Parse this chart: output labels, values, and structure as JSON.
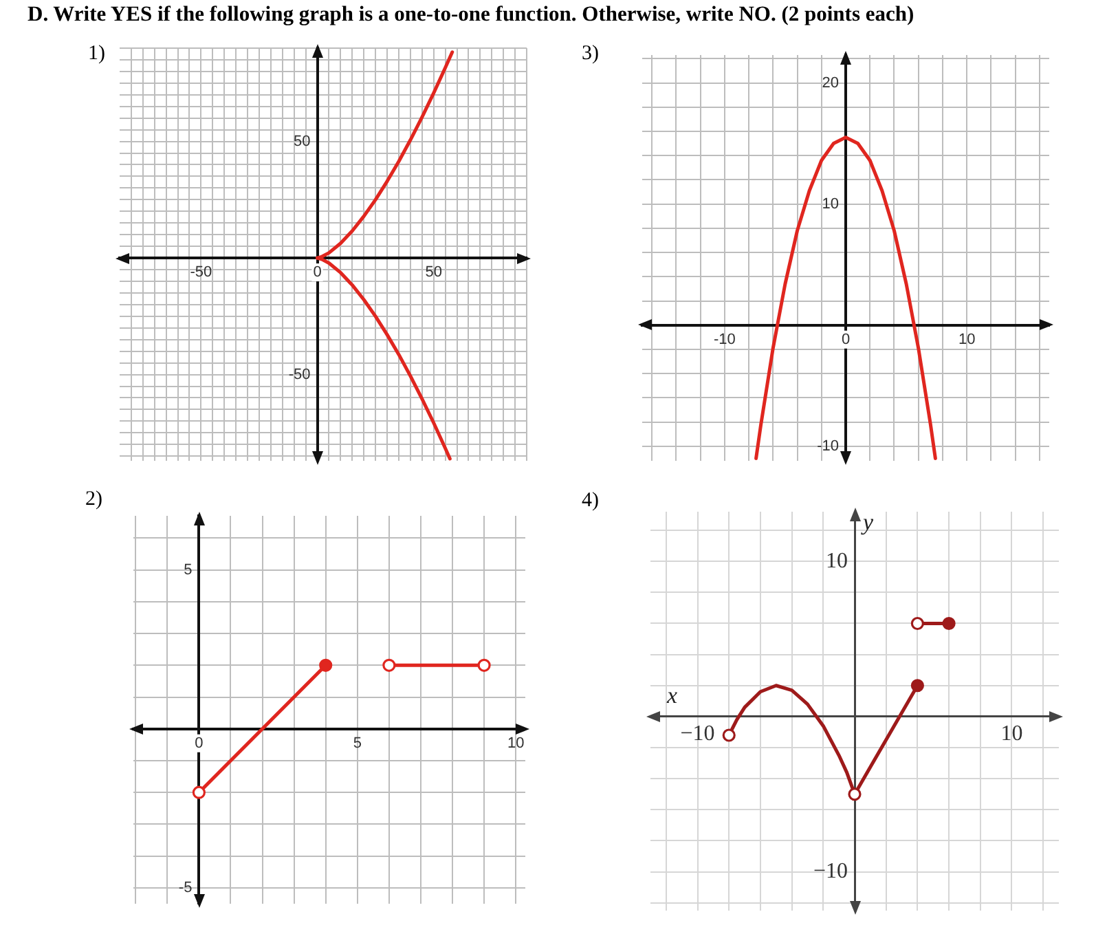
{
  "chart_data": [
    {
      "type": "other",
      "title": "D. Write YES if the following graph is a one-to-one function. Otherwise, write NO. (2 points each)"
    },
    {
      "type": "line",
      "title": "1)",
      "xlim": [
        -85,
        90
      ],
      "ylim": [
        -87,
        90
      ],
      "grid": true,
      "legend": false,
      "xticks": [
        {
          "value": -80,
          "label": null
        },
        {
          "value": -75,
          "label": null
        },
        {
          "value": -70,
          "label": null
        },
        {
          "value": -65,
          "label": null
        },
        {
          "value": -60,
          "label": null
        },
        {
          "value": -55,
          "label": null
        },
        -50,
        {
          "value": -45,
          "label": null
        },
        {
          "value": -40,
          "label": null
        },
        {
          "value": -35,
          "label": null
        },
        {
          "value": -30,
          "label": null
        },
        {
          "value": -25,
          "label": null
        },
        {
          "value": -20,
          "label": null
        },
        {
          "value": -15,
          "label": null
        },
        {
          "value": -10,
          "label": null
        },
        {
          "value": -5,
          "label": null
        },
        0,
        {
          "value": 5,
          "label": null
        },
        {
          "value": 10,
          "label": null
        },
        {
          "value": 15,
          "label": null
        },
        {
          "value": 20,
          "label": null
        },
        {
          "value": 25,
          "label": null
        },
        {
          "value": 30,
          "label": null
        },
        {
          "value": 35,
          "label": null
        },
        {
          "value": 40,
          "label": null
        },
        {
          "value": 45,
          "label": null
        },
        50,
        {
          "value": 55,
          "label": null
        },
        {
          "value": 60,
          "label": null
        },
        {
          "value": 65,
          "label": null
        },
        {
          "value": 70,
          "label": null
        },
        {
          "value": 75,
          "label": null
        },
        {
          "value": 80,
          "label": null
        },
        {
          "value": 85,
          "label": null
        },
        {
          "value": 90,
          "label": null
        }
      ],
      "yticks": [
        {
          "value": -85,
          "label": null
        },
        {
          "value": -80,
          "label": null
        },
        {
          "value": -75,
          "label": null
        },
        {
          "value": -70,
          "label": null
        },
        {
          "value": -65,
          "label": null
        },
        {
          "value": -60,
          "label": null
        },
        {
          "value": -55,
          "label": null
        },
        -50,
        {
          "value": -45,
          "label": null
        },
        {
          "value": -40,
          "label": null
        },
        {
          "value": -35,
          "label": null
        },
        {
          "value": -30,
          "label": null
        },
        {
          "value": -25,
          "label": null
        },
        {
          "value": -20,
          "label": null
        },
        {
          "value": -15,
          "label": null
        },
        {
          "value": -10,
          "label": null
        },
        {
          "value": -5,
          "label": null
        },
        {
          "value": 0,
          "label": null
        },
        {
          "value": 5,
          "label": null
        },
        {
          "value": 10,
          "label": null
        },
        {
          "value": 15,
          "label": null
        },
        {
          "value": 20,
          "label": null
        },
        {
          "value": 25,
          "label": null
        },
        {
          "value": 30,
          "label": null
        },
        {
          "value": 35,
          "label": null
        },
        {
          "value": 40,
          "label": null
        },
        {
          "value": 45,
          "label": null
        },
        50,
        {
          "value": 55,
          "label": null
        },
        {
          "value": 60,
          "label": null
        },
        {
          "value": 65,
          "label": null
        },
        {
          "value": 70,
          "label": null
        },
        {
          "value": 75,
          "label": null
        },
        {
          "value": 80,
          "label": null
        },
        {
          "value": 85,
          "label": null
        },
        {
          "value": 90,
          "label": null
        }
      ],
      "series": [
        {
          "type": "line",
          "color": "#e0261f",
          "marker": "none",
          "x": [
            0,
            2,
            5,
            10,
            15,
            20,
            25,
            30,
            35,
            40,
            45,
            50,
            55,
            58
          ],
          "values": [
            0,
            0.6,
            2.2,
            6.3,
            11.6,
            17.9,
            25,
            32.9,
            41.4,
            50.6,
            60.4,
            70.7,
            81.6,
            88.3
          ]
        },
        {
          "type": "line",
          "color": "#e0261f",
          "marker": "none",
          "x": [
            0,
            2,
            5,
            10,
            15,
            20,
            25,
            30,
            35,
            40,
            45,
            50,
            55,
            57
          ],
          "values": [
            0,
            -0.6,
            -2.2,
            -6.3,
            -11.6,
            -17.9,
            -25,
            -32.9,
            -41.4,
            -50.6,
            -60.4,
            -70.7,
            -81.6,
            -86.1
          ]
        }
      ]
    },
    {
      "type": "line",
      "title": "3)",
      "xlim": [
        -16.8,
        16.8
      ],
      "ylim": [
        -11.2,
        22.3
      ],
      "grid": true,
      "legend": false,
      "xticks": [
        {
          "value": -16,
          "label": null
        },
        {
          "value": -14,
          "label": null
        },
        {
          "value": -12,
          "label": null
        },
        -10,
        {
          "value": -8,
          "label": null
        },
        {
          "value": -6,
          "label": null
        },
        {
          "value": -4,
          "label": null
        },
        {
          "value": -2,
          "label": null
        },
        0,
        {
          "value": 2,
          "label": null
        },
        {
          "value": 4,
          "label": null
        },
        {
          "value": 6,
          "label": null
        },
        {
          "value": 8,
          "label": null
        },
        10,
        {
          "value": 12,
          "label": null
        },
        {
          "value": 14,
          "label": null
        },
        {
          "value": 16,
          "label": null
        }
      ],
      "yticks": [
        -10,
        {
          "value": -8,
          "label": null
        },
        {
          "value": -6,
          "label": null
        },
        {
          "value": -4,
          "label": null
        },
        {
          "value": -2,
          "label": null
        },
        {
          "value": 0,
          "label": null
        },
        {
          "value": 2,
          "label": null
        },
        {
          "value": 4,
          "label": null
        },
        {
          "value": 6,
          "label": null
        },
        {
          "value": 8,
          "label": null
        },
        10,
        {
          "value": 12,
          "label": null
        },
        {
          "value": 14,
          "label": null
        },
        {
          "value": 16,
          "label": null
        },
        {
          "value": 18,
          "label": null
        },
        20,
        {
          "value": 22,
          "label": null
        }
      ],
      "series": [
        {
          "type": "line",
          "color": "#e0261f",
          "marker": "none",
          "x": [
            -7.4,
            -7,
            -6,
            -5,
            -4,
            -3,
            -2,
            -1,
            0,
            1,
            2,
            3,
            4,
            5,
            6,
            7,
            7.4
          ],
          "values": [
            -11,
            -8.2,
            -1.9,
            3.4,
            7.8,
            11.1,
            13.6,
            15,
            15.5,
            15,
            13.6,
            11.1,
            7.8,
            3.4,
            -1.9,
            -8.2,
            -11
          ]
        }
      ]
    },
    {
      "type": "line",
      "title": "2)",
      "xlim": [
        -2.07,
        10.3
      ],
      "ylim": [
        -5.5,
        6.7
      ],
      "grid": true,
      "legend": false,
      "xticks": [
        {
          "value": -2,
          "label": null
        },
        {
          "value": -1,
          "label": null
        },
        0,
        {
          "value": 1,
          "label": null
        },
        {
          "value": 2,
          "label": null
        },
        {
          "value": 3,
          "label": null
        },
        {
          "value": 4,
          "label": null
        },
        5,
        {
          "value": 6,
          "label": null
        },
        {
          "value": 7,
          "label": null
        },
        {
          "value": 8,
          "label": null
        },
        {
          "value": 9,
          "label": null
        },
        10
      ],
      "yticks": [
        -5,
        {
          "value": -4,
          "label": null
        },
        {
          "value": -3,
          "label": null
        },
        {
          "value": -2,
          "label": null
        },
        {
          "value": -1,
          "label": null
        },
        {
          "value": 0,
          "label": null
        },
        {
          "value": 1,
          "label": null
        },
        {
          "value": 2,
          "label": null
        },
        {
          "value": 3,
          "label": null
        },
        {
          "value": 4,
          "label": null
        },
        5,
        {
          "value": 6,
          "label": null
        }
      ],
      "series": [
        {
          "type": "line",
          "color": "#e0261f",
          "marker": "none",
          "x": [
            0,
            4
          ],
          "values": [
            -2,
            2
          ]
        },
        {
          "type": "line",
          "color": "#e0261f",
          "marker": "none",
          "x": [
            6,
            9
          ],
          "values": [
            2,
            2
          ]
        },
        {
          "type": "scatter",
          "color": "#e0261f",
          "marker": "circle",
          "x": [
            0,
            6,
            9
          ],
          "values": [
            -2,
            2,
            2
          ],
          "colors": [
            "#ffffff",
            "#ffffff",
            "#ffffff"
          ]
        },
        {
          "type": "scatter",
          "color": "#e0261f",
          "marker": "circle",
          "x": [
            4
          ],
          "values": [
            2
          ]
        }
      ]
    },
    {
      "type": "line",
      "title": "4)",
      "xlabel": "x",
      "ylabel": "y",
      "xlim": [
        -13,
        13
      ],
      "ylim": [
        -12.5,
        13.2
      ],
      "grid": true,
      "legend": false,
      "xticks": [
        {
          "value": -12,
          "label": null
        },
        {
          "value": -10,
          "label": "−10"
        },
        {
          "value": -8,
          "label": null
        },
        {
          "value": -6,
          "label": null
        },
        {
          "value": -4,
          "label": null
        },
        {
          "value": -2,
          "label": null
        },
        {
          "value": 0,
          "label": null
        },
        {
          "value": 2,
          "label": null
        },
        {
          "value": 4,
          "label": null
        },
        {
          "value": 6,
          "label": null
        },
        {
          "value": 8,
          "label": null
        },
        10,
        {
          "value": 12,
          "label": null
        }
      ],
      "yticks": [
        {
          "value": -12,
          "label": null
        },
        {
          "value": -10,
          "label": "−10"
        },
        {
          "value": -8,
          "label": null
        },
        {
          "value": -6,
          "label": null
        },
        {
          "value": -4,
          "label": null
        },
        {
          "value": -2,
          "label": null
        },
        {
          "value": 0,
          "label": null
        },
        {
          "value": 2,
          "label": null
        },
        {
          "value": 4,
          "label": null
        },
        {
          "value": 6,
          "label": null
        },
        {
          "value": 8,
          "label": null
        },
        10,
        {
          "value": 12,
          "label": null
        }
      ],
      "series": [
        {
          "type": "line",
          "color": "#9e1a1a",
          "marker": "none",
          "x": [
            -8,
            -7.5,
            -7,
            -6,
            -5,
            -4,
            -3,
            -2,
            -1,
            -0.5,
            0
          ],
          "values": [
            -1.2,
            -0.2,
            0.6,
            1.6,
            2,
            1.7,
            0.8,
            -0.6,
            -2.5,
            -3.6,
            -5
          ]
        },
        {
          "type": "line",
          "color": "#9e1a1a",
          "marker": "none",
          "x": [
            0,
            4
          ],
          "values": [
            -5,
            2
          ]
        },
        {
          "type": "line",
          "color": "#9e1a1a",
          "marker": "none",
          "x": [
            4,
            6
          ],
          "values": [
            6,
            6
          ]
        },
        {
          "type": "scatter",
          "color": "#9e1a1a",
          "marker": "circle",
          "x": [
            -8,
            0,
            4
          ],
          "values": [
            -1.2,
            -5,
            6
          ],
          "colors": [
            "#ffffff",
            "#ffffff",
            "#ffffff"
          ]
        },
        {
          "type": "scatter",
          "color": "#9e1a1a",
          "marker": "circle",
          "x": [
            4,
            6
          ],
          "values": [
            2,
            6
          ]
        }
      ]
    }
  ]
}
